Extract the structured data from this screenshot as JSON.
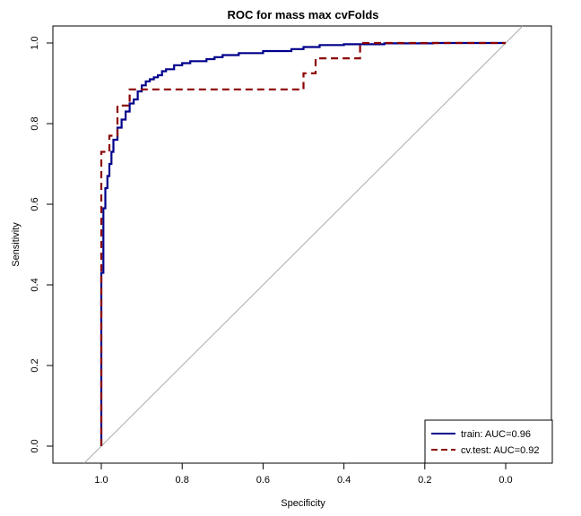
{
  "chart_data": {
    "type": "line",
    "title": "ROC for mass max cvFolds",
    "xlabel": "Specificity",
    "ylabel": "Sensitivity",
    "xlim": [
      1.1,
      -0.1
    ],
    "ylim": [
      0.0,
      1.0
    ],
    "x_reversed": true,
    "xticks": [
      1.0,
      0.8,
      0.6,
      0.4,
      0.2,
      0.0
    ],
    "xtick_labels": [
      "1.0",
      "0.8",
      "0.6",
      "0.4",
      "0.2",
      "0.0"
    ],
    "yticks": [
      0.0,
      0.2,
      0.4,
      0.6,
      0.8,
      1.0
    ],
    "ytick_labels": [
      "0.0",
      "0.2",
      "0.4",
      "0.6",
      "0.8",
      "1.0"
    ],
    "grid": false,
    "legend_position": "bottom-right",
    "diagonal": true,
    "colors": {
      "train": "#00008b",
      "test": "#8b0000",
      "diagonal": "#aaaaaa"
    },
    "series": [
      {
        "name": "train: AUC=0.96",
        "style": "solid",
        "x": [
          1.0,
          1.0,
          1.0,
          1.0,
          0.995,
          0.995,
          0.99,
          0.99,
          0.985,
          0.985,
          0.98,
          0.98,
          0.975,
          0.975,
          0.97,
          0.97,
          0.96,
          0.96,
          0.95,
          0.95,
          0.94,
          0.94,
          0.93,
          0.93,
          0.92,
          0.92,
          0.91,
          0.91,
          0.9,
          0.9,
          0.89,
          0.89,
          0.88,
          0.88,
          0.87,
          0.87,
          0.86,
          0.86,
          0.85,
          0.85,
          0.84,
          0.84,
          0.82,
          0.82,
          0.8,
          0.8,
          0.78,
          0.78,
          0.74,
          0.74,
          0.72,
          0.72,
          0.7,
          0.7,
          0.66,
          0.66,
          0.6,
          0.6,
          0.53,
          0.53,
          0.5,
          0.5,
          0.46,
          0.46,
          0.4,
          0.4,
          0.3,
          0.3,
          0.18,
          0.18,
          0.0
        ],
        "y": [
          0.0,
          0.14,
          0.14,
          0.43,
          0.43,
          0.59,
          0.59,
          0.64,
          0.64,
          0.67,
          0.67,
          0.7,
          0.7,
          0.73,
          0.73,
          0.76,
          0.76,
          0.79,
          0.79,
          0.81,
          0.81,
          0.83,
          0.83,
          0.85,
          0.85,
          0.86,
          0.86,
          0.88,
          0.88,
          0.895,
          0.895,
          0.905,
          0.905,
          0.91,
          0.91,
          0.915,
          0.915,
          0.92,
          0.92,
          0.93,
          0.93,
          0.935,
          0.935,
          0.945,
          0.945,
          0.95,
          0.95,
          0.955,
          0.955,
          0.96,
          0.96,
          0.965,
          0.965,
          0.97,
          0.97,
          0.975,
          0.975,
          0.98,
          0.98,
          0.985,
          0.985,
          0.99,
          0.99,
          0.995,
          0.995,
          0.997,
          0.997,
          0.999,
          0.999,
          1.0,
          1.0
        ]
      },
      {
        "name": "cv.test: AUC=0.92",
        "style": "dashed",
        "x": [
          1.0,
          1.0,
          0.98,
          0.98,
          0.96,
          0.96,
          0.93,
          0.93,
          0.86,
          0.86,
          0.5,
          0.5,
          0.47,
          0.47,
          0.36,
          0.36,
          0.0
        ],
        "y": [
          0.0,
          0.73,
          0.73,
          0.77,
          0.77,
          0.845,
          0.845,
          0.885,
          0.885,
          0.885,
          0.885,
          0.925,
          0.925,
          0.962,
          0.962,
          1.0,
          1.0
        ]
      }
    ]
  }
}
